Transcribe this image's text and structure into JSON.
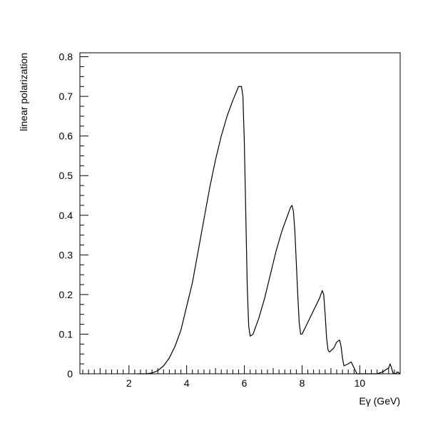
{
  "chart_data": {
    "type": "line",
    "title": "",
    "xlabel": "Eγ (GeV)",
    "ylabel": "linear polarization",
    "xlim": [
      0.3,
      11.4
    ],
    "ylim": [
      0,
      0.81
    ],
    "x_ticks": [
      2,
      4,
      6,
      8,
      10
    ],
    "x_tick_labels": [
      "2",
      "4",
      "6",
      "8",
      "10"
    ],
    "y_ticks": [
      0,
      0.1,
      0.2,
      0.3,
      0.4,
      0.5,
      0.6,
      0.7,
      0.8
    ],
    "y_tick_labels": [
      "0",
      "0.1",
      "0.2",
      "0.3",
      "0.4",
      "0.5",
      "0.6",
      "0.7",
      "0.8"
    ],
    "x_minor_step": 0.2,
    "y_minor_step": 0.025,
    "grid": false,
    "series": [
      {
        "color": "#000000",
        "points": [
          [
            2.3,
            0.0
          ],
          [
            2.6,
            0.0
          ],
          [
            2.8,
            0.002
          ],
          [
            3.0,
            0.008
          ],
          [
            3.2,
            0.02
          ],
          [
            3.4,
            0.04
          ],
          [
            3.5,
            0.055
          ],
          [
            3.6,
            0.07
          ],
          [
            3.7,
            0.09
          ],
          [
            3.8,
            0.11
          ],
          [
            3.9,
            0.14
          ],
          [
            4.0,
            0.17
          ],
          [
            4.2,
            0.23
          ],
          [
            4.4,
            0.31
          ],
          [
            4.6,
            0.39
          ],
          [
            4.8,
            0.47
          ],
          [
            5.0,
            0.54
          ],
          [
            5.2,
            0.6
          ],
          [
            5.4,
            0.65
          ],
          [
            5.6,
            0.69
          ],
          [
            5.8,
            0.725
          ],
          [
            5.9,
            0.725
          ],
          [
            5.95,
            0.7
          ],
          [
            6.0,
            0.58
          ],
          [
            6.05,
            0.4
          ],
          [
            6.1,
            0.22
          ],
          [
            6.15,
            0.12
          ],
          [
            6.2,
            0.095
          ],
          [
            6.3,
            0.1
          ],
          [
            6.5,
            0.14
          ],
          [
            6.7,
            0.19
          ],
          [
            6.9,
            0.25
          ],
          [
            7.1,
            0.31
          ],
          [
            7.3,
            0.36
          ],
          [
            7.5,
            0.4
          ],
          [
            7.6,
            0.42
          ],
          [
            7.65,
            0.425
          ],
          [
            7.7,
            0.41
          ],
          [
            7.75,
            0.36
          ],
          [
            7.8,
            0.28
          ],
          [
            7.85,
            0.2
          ],
          [
            7.9,
            0.13
          ],
          [
            7.95,
            0.1
          ],
          [
            8.0,
            0.1
          ],
          [
            8.2,
            0.13
          ],
          [
            8.4,
            0.16
          ],
          [
            8.6,
            0.19
          ],
          [
            8.7,
            0.21
          ],
          [
            8.75,
            0.2
          ],
          [
            8.8,
            0.15
          ],
          [
            8.85,
            0.09
          ],
          [
            8.9,
            0.06
          ],
          [
            8.95,
            0.055
          ],
          [
            9.1,
            0.065
          ],
          [
            9.2,
            0.08
          ],
          [
            9.3,
            0.085
          ],
          [
            9.35,
            0.07
          ],
          [
            9.4,
            0.04
          ],
          [
            9.45,
            0.02
          ],
          [
            9.6,
            0.025
          ],
          [
            9.7,
            0.03
          ],
          [
            9.8,
            0.015
          ],
          [
            9.9,
            0.0
          ],
          [
            10.6,
            0.0
          ],
          [
            10.8,
            0.005
          ],
          [
            11.0,
            0.015
          ],
          [
            11.05,
            0.025
          ],
          [
            11.1,
            0.015
          ],
          [
            11.15,
            0.002
          ],
          [
            11.25,
            0.0
          ],
          [
            11.3,
            0.005
          ],
          [
            11.4,
            0.0
          ]
        ]
      }
    ]
  }
}
